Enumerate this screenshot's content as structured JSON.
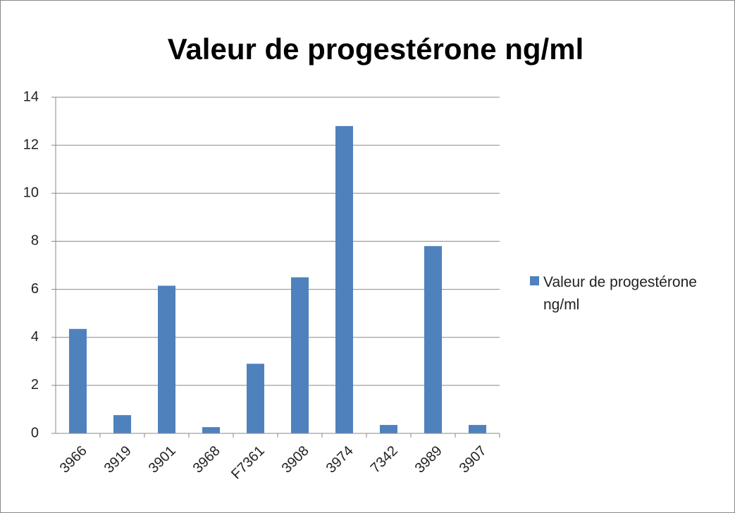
{
  "chart_data": {
    "type": "bar",
    "title": "Valeur de progestérone  ng/ml",
    "categories": [
      "3966",
      "3919",
      "3901",
      "3968",
      "F7361",
      "3908",
      "3974",
      "7342",
      "3989",
      "3907"
    ],
    "series": [
      {
        "name": "Valeur de progestérone ng/ml",
        "color": "#4f81bd",
        "values": [
          4.35,
          0.76,
          6.15,
          0.26,
          2.9,
          6.5,
          12.8,
          0.35,
          7.8,
          0.35
        ]
      }
    ],
    "ylim": [
      0,
      14
    ],
    "yticks": [
      0,
      2,
      4,
      6,
      8,
      10,
      12,
      14
    ],
    "grid": true,
    "legend": "right"
  }
}
